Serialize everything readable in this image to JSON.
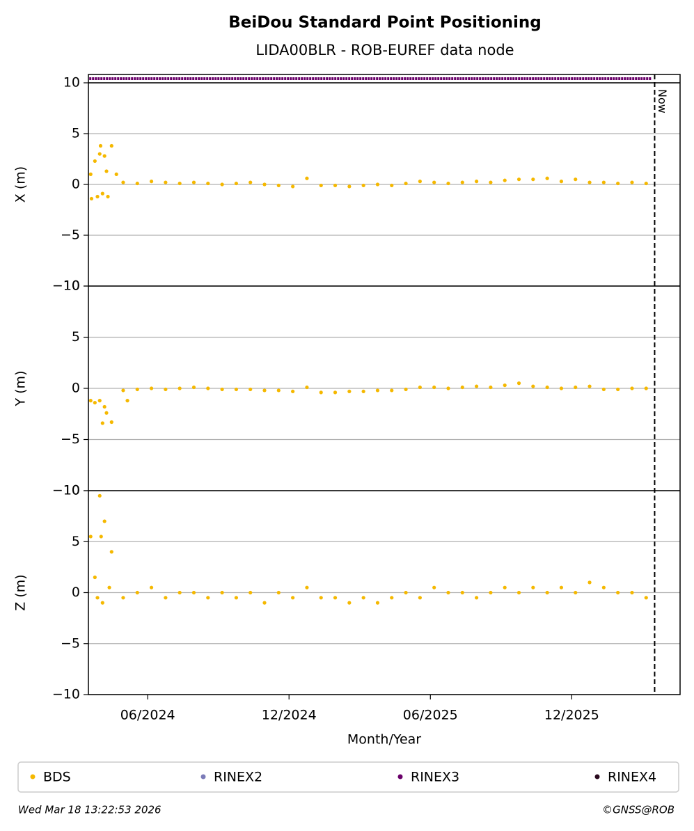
{
  "chart_data": {
    "type": "scatter",
    "title": "BeiDou Standard Point Positioning",
    "subtitle": "LIDA00BLR - ROB-EUREF data node",
    "xlabel": "Month/Year",
    "xlim": [
      2024.207,
      2026.3
    ],
    "xticks": [
      {
        "value": 2024.4167,
        "label": "06/2024"
      },
      {
        "value": 2024.9167,
        "label": "12/2024"
      },
      {
        "value": 2025.4167,
        "label": "06/2025"
      },
      {
        "value": 2025.9167,
        "label": "12/2025"
      }
    ],
    "now": {
      "value": 2026.21,
      "label": "Now"
    },
    "legend": [
      {
        "name": "BDS",
        "color": "#f5b800"
      },
      {
        "name": "RINEX2",
        "color": "#7b7bb8"
      },
      {
        "name": "RINEX3",
        "color": "#6a006a"
      },
      {
        "name": "RINEX4",
        "color": "#2a0a1e"
      }
    ],
    "rinex3_span": [
      2024.21,
      2026.2
    ],
    "grid": true,
    "panels": [
      {
        "ylabel": "X (m)",
        "ylim": [
          -10,
          10
        ],
        "yticks": [
          {
            "value": -10,
            "label": "−10"
          },
          {
            "value": -5,
            "label": "−5"
          },
          0,
          5,
          10
        ],
        "series": [
          {
            "name": "BDS",
            "color": "#f5b800",
            "x": [
              2024.215,
              2024.218,
              2024.23,
              2024.239,
              2024.247,
              2024.25,
              2024.257,
              2024.264,
              2024.271,
              2024.276,
              2024.289,
              2024.306,
              2024.33,
              2024.38,
              2024.43,
              2024.48,
              2024.53,
              2024.58,
              2024.63,
              2024.68,
              2024.73,
              2024.78,
              2024.83,
              2024.88,
              2024.93,
              2024.98,
              2025.03,
              2025.08,
              2025.13,
              2025.18,
              2025.23,
              2025.28,
              2025.33,
              2025.38,
              2025.43,
              2025.48,
              2025.53,
              2025.58,
              2025.63,
              2025.68,
              2025.73,
              2025.78,
              2025.83,
              2025.88,
              2025.93,
              2025.98,
              2026.03,
              2026.08,
              2026.13,
              2026.18
            ],
            "values": [
              1.0,
              -1.4,
              2.3,
              -1.2,
              3.0,
              3.8,
              -0.9,
              2.8,
              1.3,
              -1.2,
              3.8,
              1.0,
              0.2,
              0.1,
              0.3,
              0.2,
              0.1,
              0.2,
              0.1,
              0.0,
              0.1,
              0.2,
              0.0,
              -0.1,
              -0.2,
              0.6,
              -0.1,
              -0.1,
              -0.2,
              -0.1,
              0.0,
              -0.1,
              0.1,
              0.3,
              0.2,
              0.1,
              0.2,
              0.3,
              0.2,
              0.4,
              0.5,
              0.5,
              0.6,
              0.3,
              0.5,
              0.2,
              0.2,
              0.1,
              0.2,
              0.1
            ]
          }
        ]
      },
      {
        "ylabel": "Y (m)",
        "ylim": [
          -10,
          10
        ],
        "yticks": [
          {
            "value": -10,
            "label": "−10"
          },
          {
            "value": -5,
            "label": "−5"
          },
          0,
          5,
          10
        ],
        "series": [
          {
            "name": "BDS",
            "color": "#f5b800",
            "x": [
              2024.215,
              2024.23,
              2024.247,
              2024.257,
              2024.264,
              2024.271,
              2024.289,
              2024.345,
              2024.33,
              2024.38,
              2024.43,
              2024.48,
              2024.53,
              2024.58,
              2024.63,
              2024.68,
              2024.73,
              2024.78,
              2024.83,
              2024.88,
              2024.93,
              2024.98,
              2025.03,
              2025.08,
              2025.13,
              2025.18,
              2025.23,
              2025.28,
              2025.33,
              2025.38,
              2025.43,
              2025.48,
              2025.53,
              2025.58,
              2025.63,
              2025.68,
              2025.73,
              2025.78,
              2025.83,
              2025.88,
              2025.93,
              2025.98,
              2026.03,
              2026.08,
              2026.13,
              2026.18
            ],
            "values": [
              -1.2,
              -1.4,
              -1.2,
              -3.4,
              -1.8,
              -2.4,
              -3.3,
              -1.2,
              -0.2,
              -0.1,
              0.0,
              -0.1,
              0.0,
              0.1,
              0.0,
              -0.1,
              -0.1,
              -0.1,
              -0.2,
              -0.2,
              -0.3,
              0.1,
              -0.4,
              -0.4,
              -0.3,
              -0.3,
              -0.2,
              -0.2,
              -0.1,
              0.1,
              0.1,
              0.0,
              0.1,
              0.2,
              0.1,
              0.3,
              0.5,
              0.2,
              0.1,
              0.0,
              0.1,
              0.2,
              -0.1,
              -0.1,
              0.0,
              0.0
            ]
          }
        ]
      },
      {
        "ylabel": "Z (m)",
        "ylim": [
          -10,
          10
        ],
        "yticks": [
          {
            "value": -10,
            "label": "−10"
          },
          {
            "value": -5,
            "label": "−5"
          },
          0,
          5,
          10
        ],
        "series": [
          {
            "name": "BDS",
            "color": "#f5b800",
            "x": [
              2024.215,
              2024.23,
              2024.239,
              2024.247,
              2024.252,
              2024.257,
              2024.264,
              2024.281,
              2024.289,
              2024.33,
              2024.38,
              2024.43,
              2024.48,
              2024.53,
              2024.58,
              2024.63,
              2024.68,
              2024.73,
              2024.78,
              2024.83,
              2024.88,
              2024.93,
              2024.98,
              2025.03,
              2025.08,
              2025.13,
              2025.18,
              2025.23,
              2025.28,
              2025.33,
              2025.38,
              2025.43,
              2025.48,
              2025.53,
              2025.58,
              2025.63,
              2025.68,
              2025.73,
              2025.78,
              2025.83,
              2025.88,
              2025.93,
              2025.98,
              2026.03,
              2026.08,
              2026.13,
              2026.18
            ],
            "values": [
              5.5,
              1.5,
              -0.5,
              9.5,
              5.5,
              -1.0,
              7.0,
              0.5,
              4.0,
              -0.5,
              0.0,
              0.5,
              -0.5,
              0.0,
              0.0,
              -0.5,
              0.0,
              -0.5,
              0.0,
              -1.0,
              0.0,
              -0.5,
              0.5,
              -0.5,
              -0.5,
              -1.0,
              -0.5,
              -1.0,
              -0.5,
              0.0,
              -0.5,
              0.5,
              0.0,
              0.0,
              -0.5,
              0.0,
              0.5,
              0.0,
              0.5,
              0.0,
              0.5,
              0.0,
              1.0,
              0.5,
              0.0,
              0.0,
              -0.5
            ]
          }
        ]
      }
    ],
    "footer_left": "Wed Mar 18 13:22:53 2026",
    "footer_right": "©GNSS@ROB"
  }
}
